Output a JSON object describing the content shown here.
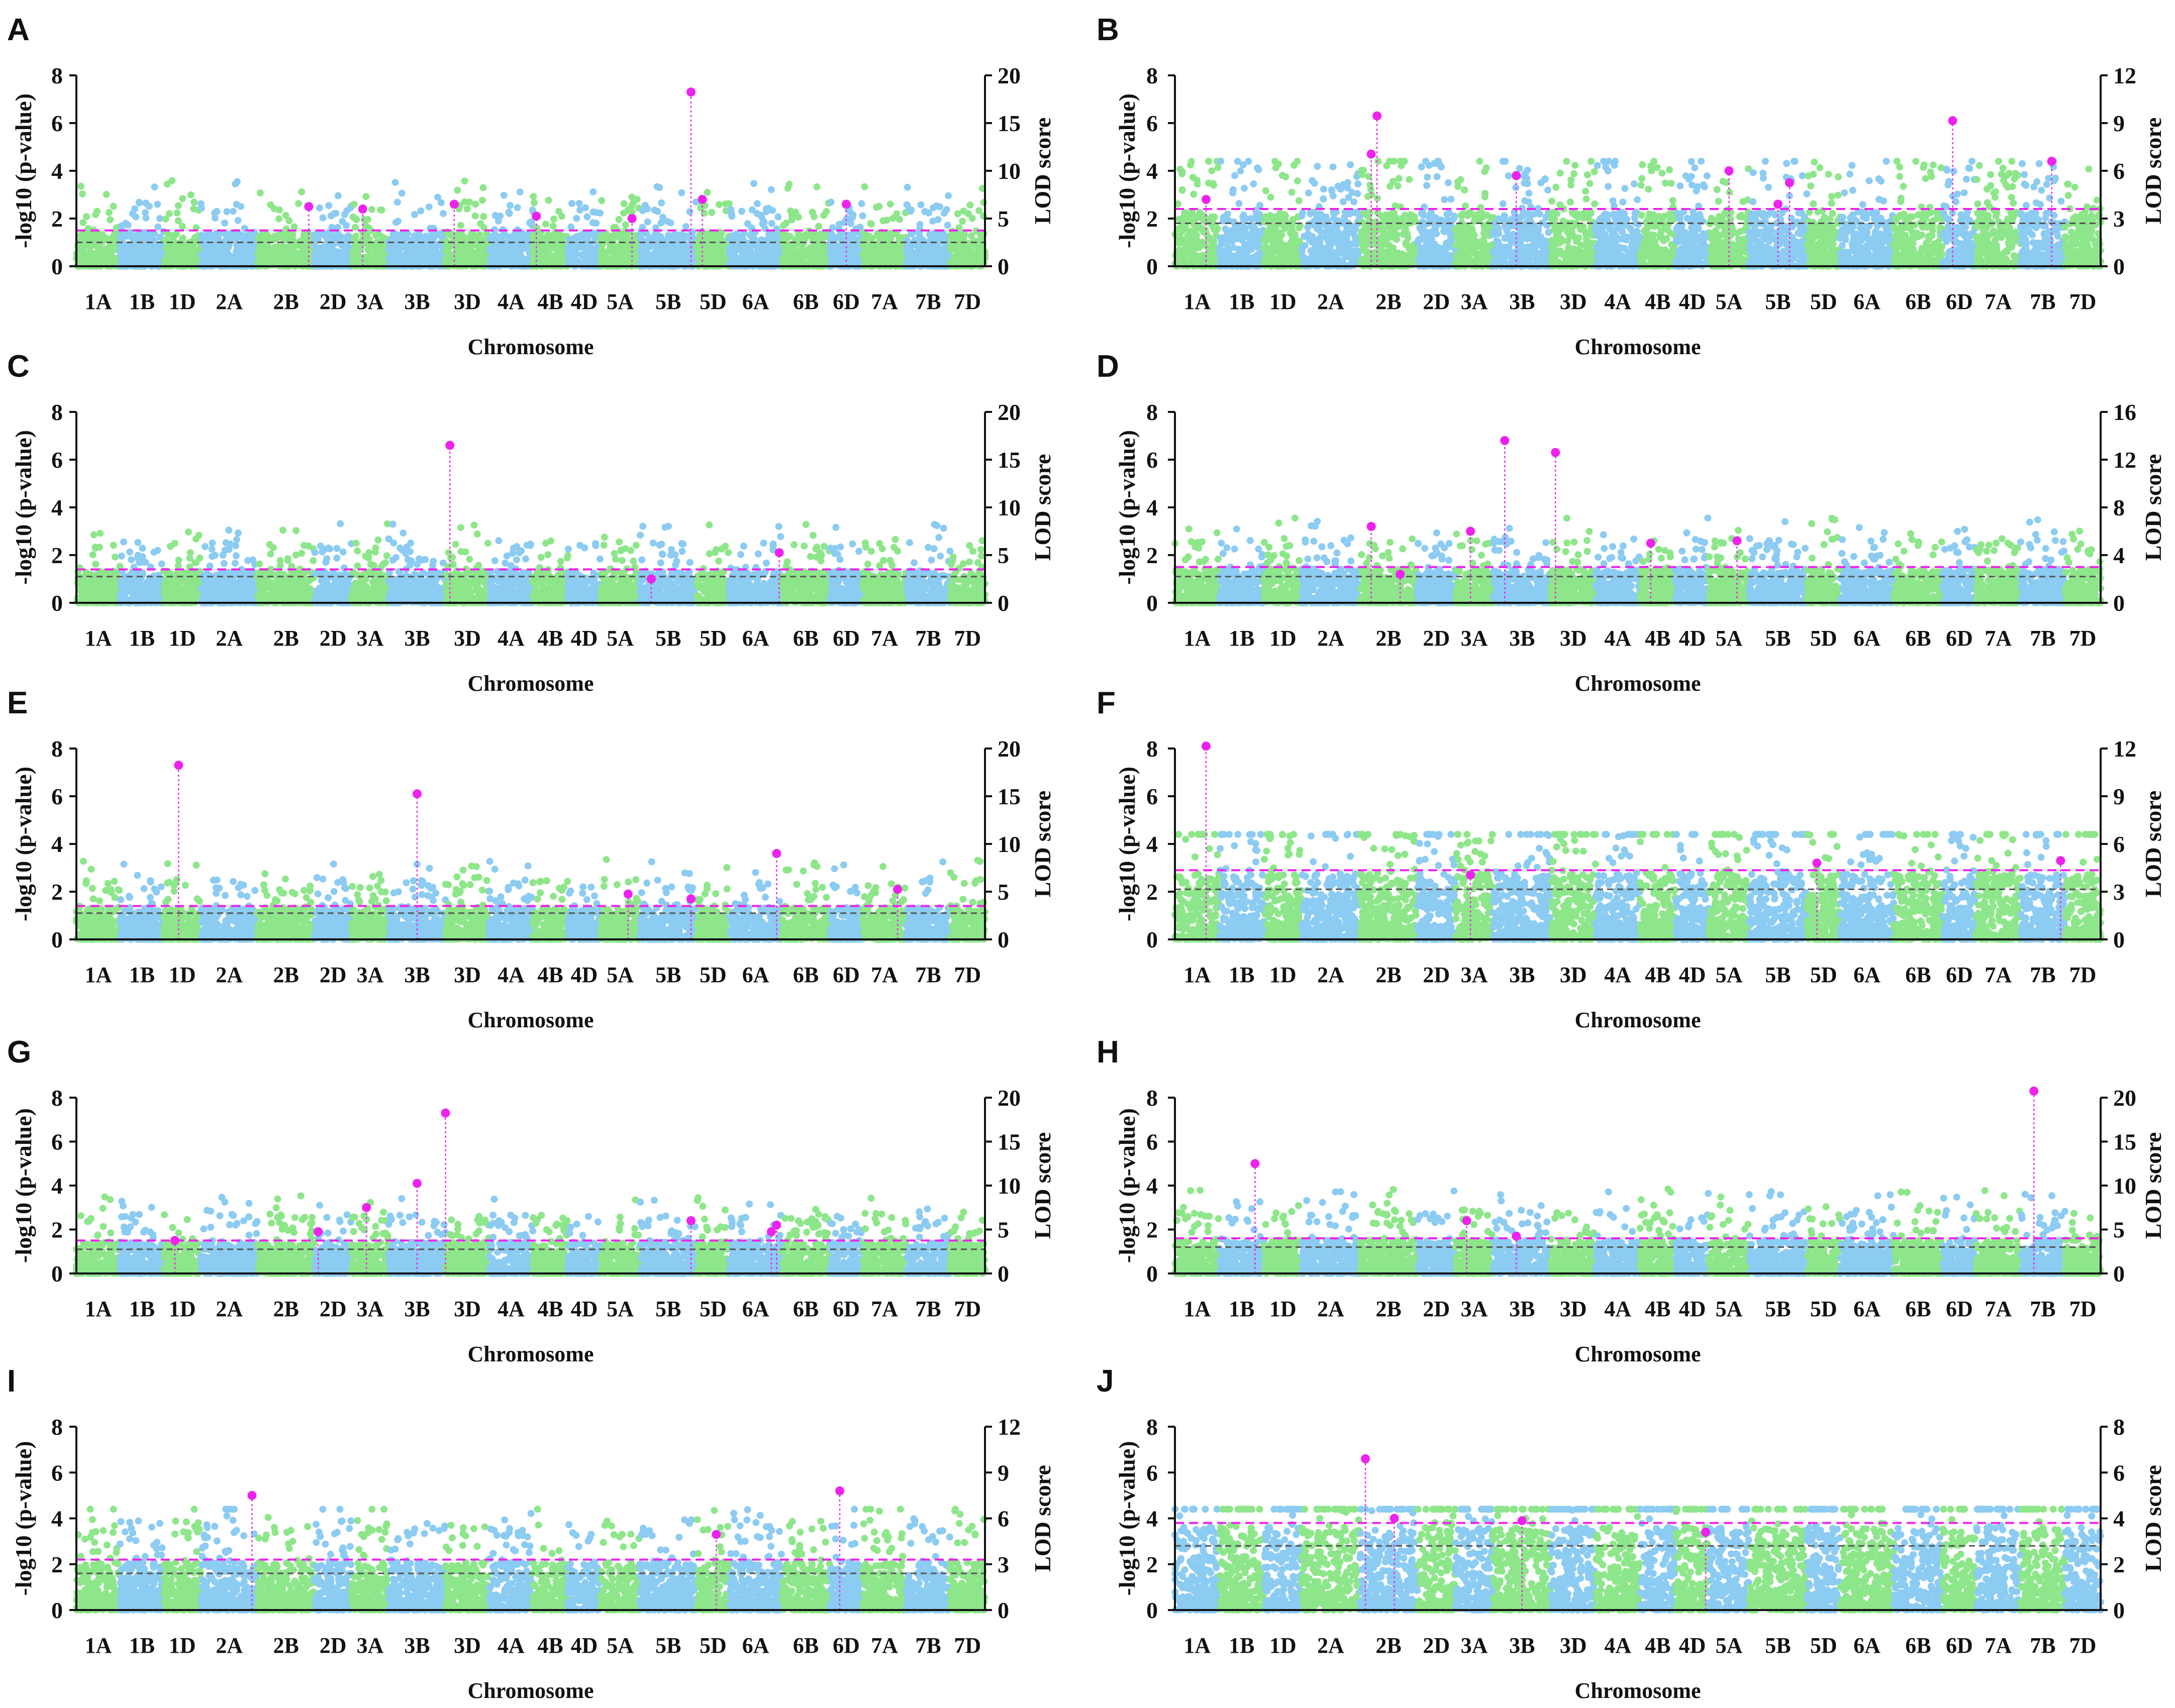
{
  "figure": {
    "chromosomes": [
      "1A",
      "1B",
      "1D",
      "2A",
      "2B",
      "2D",
      "3A",
      "3B",
      "3D",
      "4A",
      "4B",
      "4D",
      "5A",
      "5B",
      "5D",
      "6A",
      "6B",
      "6D",
      "7A",
      "7B",
      "7D"
    ],
    "xlabel": "Chromosome",
    "ylabel_left": "-log10 (p-value)",
    "ylabel_right": "LOD score",
    "colors": {
      "green": "#8EE68A",
      "blue": "#8CCBF2",
      "magenta": "#EE22EE",
      "grey_threshold": "#555555"
    }
  },
  "chart_data": [
    {
      "id": "A",
      "type": "scatter",
      "ylim": [
        0,
        8
      ],
      "y_ticks": [
        0,
        2,
        4,
        6,
        8
      ],
      "lod_lim": [
        0,
        20
      ],
      "lod_ticks": [
        0,
        5,
        10,
        15,
        20
      ],
      "threshold_magenta": 1.5,
      "threshold_grey": 1.0,
      "chrom_start_color": "green",
      "peaks": [
        {
          "chrom": "2B",
          "pos": 0.9,
          "y": 2.5
        },
        {
          "chrom": "3A",
          "pos": 0.3,
          "y": 2.4
        },
        {
          "chrom": "3D",
          "pos": 0.2,
          "y": 2.6
        },
        {
          "chrom": "4B",
          "pos": 0.1,
          "y": 2.1
        },
        {
          "chrom": "5A",
          "pos": 0.8,
          "y": 2.0
        },
        {
          "chrom": "5B",
          "pos": 0.9,
          "y": 7.3
        },
        {
          "chrom": "5B",
          "pos": 1.1,
          "y": 2.8
        },
        {
          "chrom": "6D",
          "pos": 0.5,
          "y": 2.6
        }
      ]
    },
    {
      "id": "B",
      "type": "scatter",
      "ylim": [
        0,
        8
      ],
      "y_ticks": [
        0,
        2,
        4,
        6,
        8
      ],
      "lod_lim": [
        0,
        12
      ],
      "lod_ticks": [
        0,
        3,
        6,
        9,
        12
      ],
      "threshold_magenta": 2.4,
      "threshold_grey": 1.8,
      "chrom_start_color": "green",
      "peaks": [
        {
          "chrom": "1A",
          "pos": 0.7,
          "y": 2.8
        },
        {
          "chrom": "2B",
          "pos": 0.2,
          "y": 4.7
        },
        {
          "chrom": "2B",
          "pos": 0.3,
          "y": 6.3
        },
        {
          "chrom": "3B",
          "pos": 0.4,
          "y": 3.8
        },
        {
          "chrom": "5A",
          "pos": 0.5,
          "y": 4.0
        },
        {
          "chrom": "5B",
          "pos": 0.5,
          "y": 2.6
        },
        {
          "chrom": "5B",
          "pos": 0.7,
          "y": 3.5
        },
        {
          "chrom": "6D",
          "pos": 0.3,
          "y": 6.1
        },
        {
          "chrom": "7B",
          "pos": 0.7,
          "y": 4.4
        }
      ]
    },
    {
      "id": "C",
      "type": "scatter",
      "ylim": [
        0,
        8
      ],
      "y_ticks": [
        0,
        2,
        4,
        6,
        8
      ],
      "lod_lim": [
        0,
        20
      ],
      "lod_ticks": [
        0,
        5,
        10,
        15,
        20
      ],
      "threshold_magenta": 1.4,
      "threshold_grey": 1.1,
      "chrom_start_color": "green",
      "peaks": [
        {
          "chrom": "3D",
          "pos": 0.1,
          "y": 6.6
        },
        {
          "chrom": "5B",
          "pos": 0.2,
          "y": 1.0
        },
        {
          "chrom": "6A",
          "pos": 0.95,
          "y": 2.1
        }
      ]
    },
    {
      "id": "D",
      "type": "scatter",
      "ylim": [
        0,
        8
      ],
      "y_ticks": [
        0,
        2,
        4,
        6,
        8
      ],
      "lod_lim": [
        0,
        16
      ],
      "lod_ticks": [
        0,
        4,
        8,
        12,
        16
      ],
      "threshold_magenta": 1.5,
      "threshold_grey": 1.1,
      "chrom_start_color": "green",
      "peaks": [
        {
          "chrom": "2B",
          "pos": 0.2,
          "y": 3.2
        },
        {
          "chrom": "2B",
          "pos": 0.7,
          "y": 1.2
        },
        {
          "chrom": "3A",
          "pos": 0.4,
          "y": 3.0
        },
        {
          "chrom": "3B",
          "pos": 0.2,
          "y": 6.8
        },
        {
          "chrom": "3D",
          "pos": 0.1,
          "y": 6.3
        },
        {
          "chrom": "4B",
          "pos": 0.3,
          "y": 2.5
        },
        {
          "chrom": "5A",
          "pos": 0.7,
          "y": 2.6
        }
      ]
    },
    {
      "id": "E",
      "type": "scatter",
      "ylim": [
        0,
        8
      ],
      "y_ticks": [
        0,
        2,
        4,
        6,
        8
      ],
      "lod_lim": [
        0,
        20
      ],
      "lod_ticks": [
        0,
        5,
        10,
        15,
        20
      ],
      "threshold_magenta": 1.4,
      "threshold_grey": 1.1,
      "chrom_start_color": "green",
      "peaks": [
        {
          "chrom": "1D",
          "pos": 0.4,
          "y": 7.3
        },
        {
          "chrom": "3B",
          "pos": 0.5,
          "y": 6.1
        },
        {
          "chrom": "5A",
          "pos": 0.7,
          "y": 1.9
        },
        {
          "chrom": "5B",
          "pos": 0.9,
          "y": 1.7
        },
        {
          "chrom": "6A",
          "pos": 0.9,
          "y": 3.6
        },
        {
          "chrom": "7A",
          "pos": 0.8,
          "y": 2.1
        }
      ]
    },
    {
      "id": "F",
      "type": "scatter",
      "ylim": [
        0,
        8
      ],
      "y_ticks": [
        0,
        2,
        4,
        6,
        8
      ],
      "lod_lim": [
        0,
        12
      ],
      "lod_ticks": [
        0,
        3,
        6,
        9,
        12
      ],
      "threshold_magenta": 2.9,
      "threshold_grey": 2.1,
      "chrom_start_color": "green",
      "peaks": [
        {
          "chrom": "1A",
          "pos": 0.7,
          "y": 8.1
        },
        {
          "chrom": "3A",
          "pos": 0.4,
          "y": 2.7
        },
        {
          "chrom": "5D",
          "pos": 0.3,
          "y": 3.2
        },
        {
          "chrom": "7B",
          "pos": 0.9,
          "y": 3.3
        }
      ]
    },
    {
      "id": "G",
      "type": "scatter",
      "ylim": [
        0,
        8
      ],
      "y_ticks": [
        0,
        2,
        4,
        6,
        8
      ],
      "lod_lim": [
        0,
        20
      ],
      "lod_ticks": [
        0,
        5,
        10,
        15,
        20
      ],
      "threshold_magenta": 1.5,
      "threshold_grey": 1.1,
      "chrom_start_color": "green",
      "peaks": [
        {
          "chrom": "1D",
          "pos": 0.3,
          "y": 1.5
        },
        {
          "chrom": "2D",
          "pos": 0.1,
          "y": 1.9
        },
        {
          "chrom": "3A",
          "pos": 0.4,
          "y": 3.0
        },
        {
          "chrom": "3B",
          "pos": 0.5,
          "y": 4.1
        },
        {
          "chrom": "3D",
          "pos": 0.0,
          "y": 7.3
        },
        {
          "chrom": "5B",
          "pos": 0.9,
          "y": 2.4
        },
        {
          "chrom": "6A",
          "pos": 0.8,
          "y": 1.9
        },
        {
          "chrom": "6A",
          "pos": 0.9,
          "y": 2.2
        }
      ]
    },
    {
      "id": "H",
      "type": "scatter",
      "ylim": [
        0,
        8
      ],
      "y_ticks": [
        0,
        2,
        4,
        6,
        8
      ],
      "lod_lim": [
        0,
        20
      ],
      "lod_ticks": [
        0,
        5,
        10,
        15,
        20
      ],
      "threshold_magenta": 1.6,
      "threshold_grey": 1.2,
      "chrom_start_color": "green",
      "peaks": [
        {
          "chrom": "1B",
          "pos": 0.8,
          "y": 5.0
        },
        {
          "chrom": "3A",
          "pos": 0.3,
          "y": 2.4
        },
        {
          "chrom": "3B",
          "pos": 0.4,
          "y": 1.7
        },
        {
          "chrom": "7B",
          "pos": 0.3,
          "y": 8.3
        }
      ]
    },
    {
      "id": "I",
      "type": "scatter",
      "ylim": [
        0,
        8
      ],
      "y_ticks": [
        0,
        2,
        4,
        6,
        8
      ],
      "lod_lim": [
        0,
        12
      ],
      "lod_ticks": [
        0,
        3,
        6,
        9,
        12
      ],
      "threshold_magenta": 2.2,
      "threshold_grey": 1.6,
      "chrom_start_color": "green",
      "peaks": [
        {
          "chrom": "2A",
          "pos": 0.9,
          "y": 5.0
        },
        {
          "chrom": "5D",
          "pos": 0.6,
          "y": 3.3
        },
        {
          "chrom": "6D",
          "pos": 0.3,
          "y": 5.2
        }
      ]
    },
    {
      "id": "J",
      "type": "scatter",
      "ylim": [
        0,
        8
      ],
      "y_ticks": [
        0,
        2,
        4,
        6,
        8
      ],
      "lod_lim": [
        0,
        8
      ],
      "lod_ticks": [
        0,
        2,
        4,
        6,
        8
      ],
      "threshold_magenta": 3.8,
      "threshold_grey": 2.8,
      "chrom_start_color": "blue",
      "peaks": [
        {
          "chrom": "2A",
          "pos": 1.1,
          "y": 6.6
        },
        {
          "chrom": "2B",
          "pos": 0.6,
          "y": 4.0
        },
        {
          "chrom": "3B",
          "pos": 0.5,
          "y": 3.9
        },
        {
          "chrom": "4D",
          "pos": 0.9,
          "y": 3.4
        }
      ]
    }
  ]
}
